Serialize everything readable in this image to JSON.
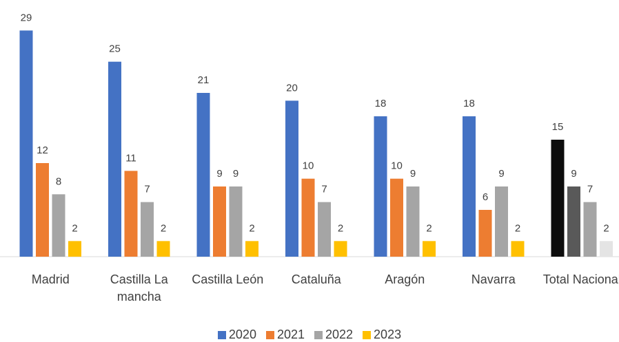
{
  "chart_data": {
    "type": "bar",
    "categories": [
      "Madrid",
      "Castilla La mancha",
      "Castilla León",
      "Cataluña",
      "Aragón",
      "Navarra",
      "Total Nacional"
    ],
    "series": [
      {
        "name": "2020",
        "color": "#4472c4",
        "colors": [
          "#4472c4",
          "#4472c4",
          "#4472c4",
          "#4472c4",
          "#4472c4",
          "#4472c4",
          "#0d0d0d"
        ],
        "values": [
          29,
          25,
          21,
          20,
          18,
          18,
          15
        ]
      },
      {
        "name": "2021",
        "color": "#ed7d31",
        "colors": [
          "#ed7d31",
          "#ed7d31",
          "#ed7d31",
          "#ed7d31",
          "#ed7d31",
          "#ed7d31",
          "#595959"
        ],
        "values": [
          12,
          11,
          9,
          10,
          10,
          6,
          9
        ]
      },
      {
        "name": "2022",
        "color": "#a5a5a5",
        "colors": [
          "#a5a5a5",
          "#a5a5a5",
          "#a5a5a5",
          "#a5a5a5",
          "#a5a5a5",
          "#a5a5a5",
          "#a5a5a5"
        ],
        "values": [
          8,
          7,
          9,
          7,
          9,
          9,
          7
        ]
      },
      {
        "name": "2023",
        "color": "#ffc000",
        "colors": [
          "#ffc000",
          "#ffc000",
          "#ffc000",
          "#ffc000",
          "#ffc000",
          "#ffc000",
          "#e4e4e4"
        ],
        "values": [
          2,
          2,
          2,
          2,
          2,
          2,
          2
        ]
      }
    ],
    "ylim": [
      0,
      30
    ],
    "legend": "bottom"
  }
}
